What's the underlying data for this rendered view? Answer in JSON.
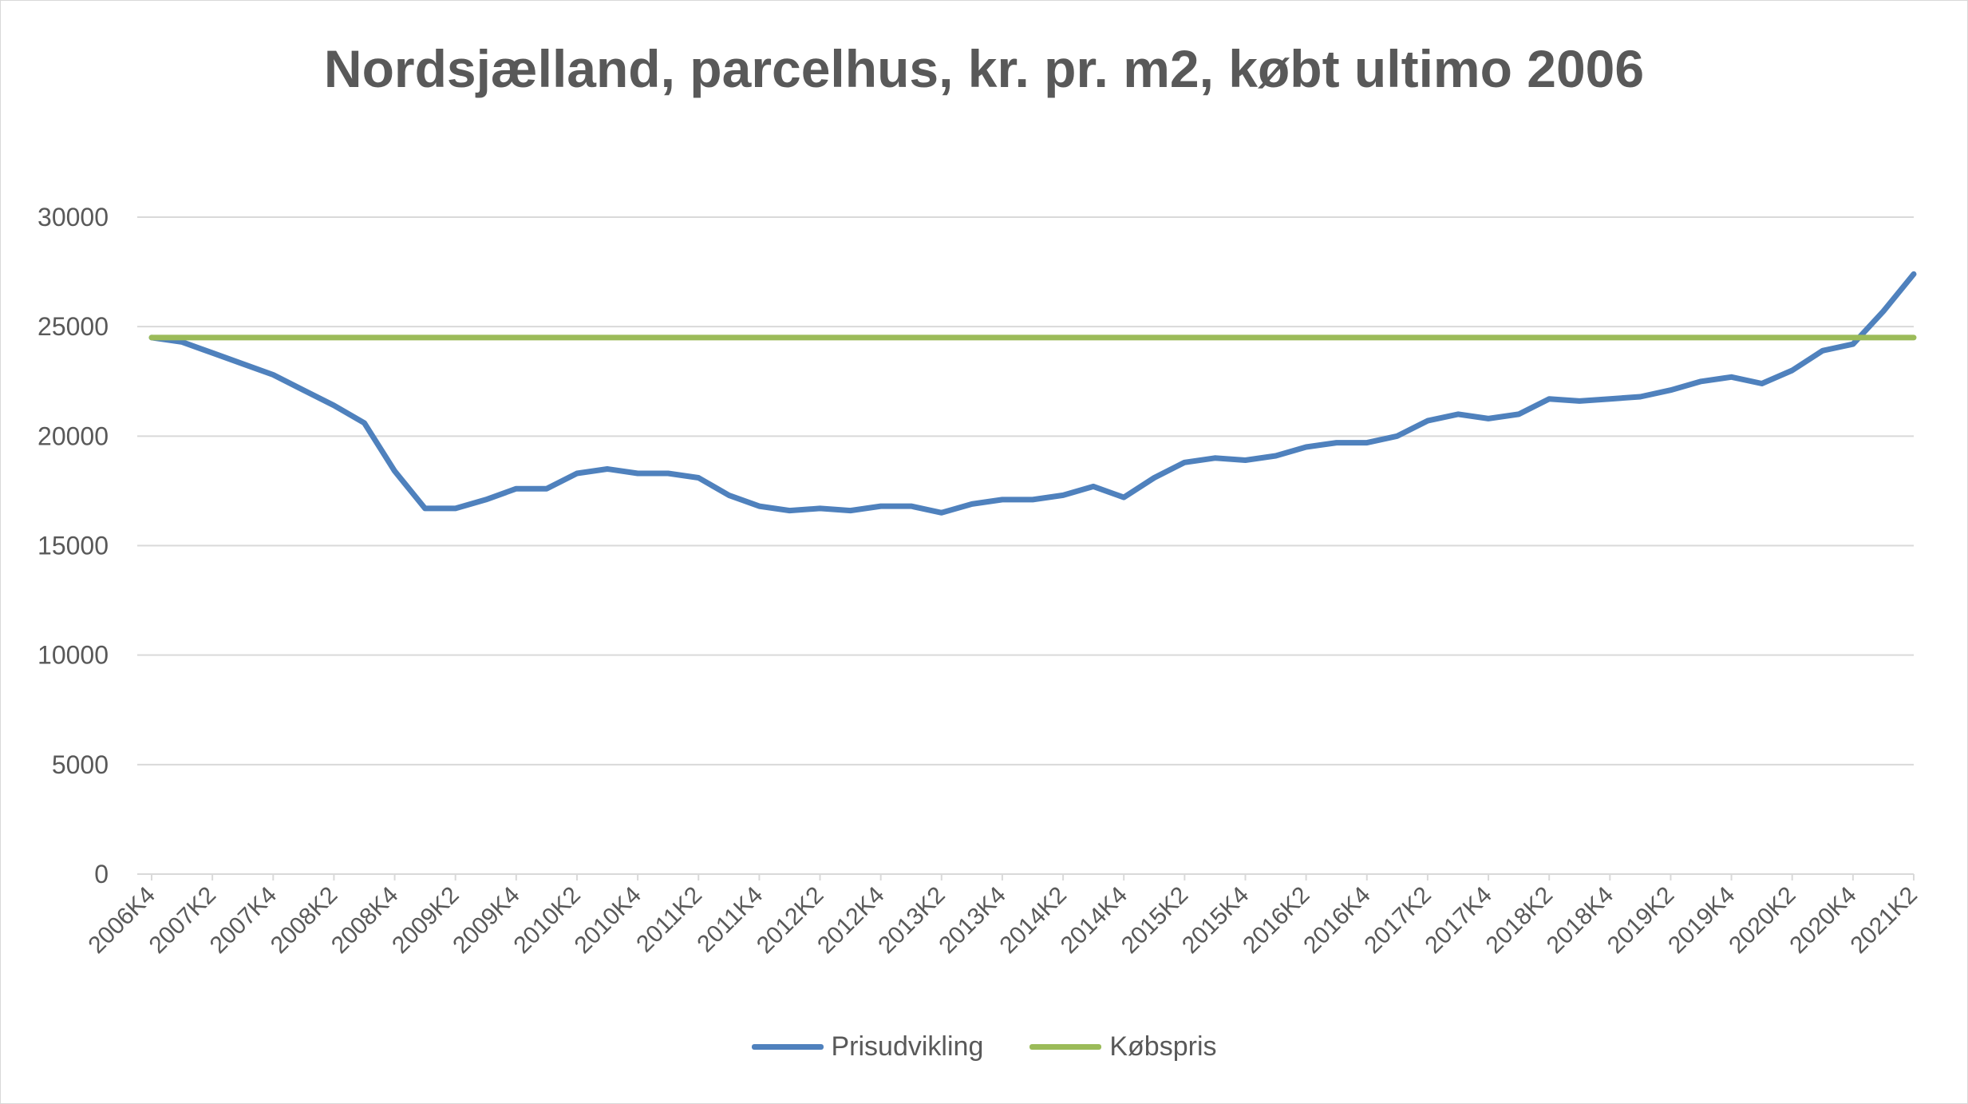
{
  "chart_data": {
    "type": "line",
    "title": "Nordsjælland, parcelhus, kr. pr. m2, købt ultimo 2006",
    "xlabel": "",
    "ylabel": "",
    "ylim": [
      0,
      30000
    ],
    "yticks": [
      0,
      5000,
      10000,
      15000,
      20000,
      25000,
      30000
    ],
    "grid": true,
    "legend_position": "bottom",
    "x": [
      "2006K4",
      "2007K1",
      "2007K2",
      "2007K3",
      "2007K4",
      "2008K1",
      "2008K2",
      "2008K3",
      "2008K4",
      "2009K1",
      "2009K2",
      "2009K3",
      "2009K4",
      "2010K1",
      "2010K2",
      "2010K3",
      "2010K4",
      "2011K1",
      "2011K2",
      "2011K3",
      "2011K4",
      "2012K1",
      "2012K2",
      "2012K3",
      "2012K4",
      "2013K1",
      "2013K2",
      "2013K3",
      "2013K4",
      "2014K1",
      "2014K2",
      "2014K3",
      "2014K4",
      "2015K1",
      "2015K2",
      "2015K3",
      "2015K4",
      "2016K1",
      "2016K2",
      "2016K3",
      "2016K4",
      "2017K1",
      "2017K2",
      "2017K3",
      "2017K4",
      "2018K1",
      "2018K2",
      "2018K3",
      "2018K4",
      "2019K1",
      "2019K2",
      "2019K3",
      "2019K4",
      "2020K1",
      "2020K2",
      "2020K3",
      "2020K4",
      "2021K1",
      "2021K2"
    ],
    "x_tick_labels": [
      "2006K4",
      "2007K2",
      "2007K4",
      "2008K2",
      "2008K4",
      "2009K2",
      "2009K4",
      "2010K2",
      "2010K4",
      "2011K2",
      "2011K4",
      "2012K2",
      "2012K4",
      "2013K2",
      "2013K4",
      "2014K2",
      "2014K4",
      "2015K2",
      "2015K4",
      "2016K2",
      "2016K4",
      "2017K2",
      "2017K4",
      "2018K2",
      "2018K4",
      "2019K2",
      "2019K4",
      "2020K2",
      "2020K4",
      "2021K2"
    ],
    "series": [
      {
        "name": "Prisudvikling",
        "color": "#4f81bd",
        "values": [
          24500,
          24300,
          23800,
          23300,
          22800,
          22100,
          21400,
          20600,
          18400,
          16700,
          16700,
          17100,
          17600,
          17600,
          18300,
          18500,
          18300,
          18300,
          18100,
          17300,
          16800,
          16600,
          16700,
          16600,
          16800,
          16800,
          16500,
          16900,
          17100,
          17100,
          17300,
          17700,
          17200,
          18100,
          18800,
          19000,
          18900,
          19100,
          19500,
          19700,
          19700,
          20000,
          20700,
          21000,
          20800,
          21000,
          21700,
          21600,
          21700,
          21800,
          22100,
          22500,
          22700,
          22400,
          23000,
          23900,
          24200,
          25700,
          27400
        ]
      },
      {
        "name": "Købspris",
        "color": "#9bbb59",
        "values": [
          24500,
          24500,
          24500,
          24500,
          24500,
          24500,
          24500,
          24500,
          24500,
          24500,
          24500,
          24500,
          24500,
          24500,
          24500,
          24500,
          24500,
          24500,
          24500,
          24500,
          24500,
          24500,
          24500,
          24500,
          24500,
          24500,
          24500,
          24500,
          24500,
          24500,
          24500,
          24500,
          24500,
          24500,
          24500,
          24500,
          24500,
          24500,
          24500,
          24500,
          24500,
          24500,
          24500,
          24500,
          24500,
          24500,
          24500,
          24500,
          24500,
          24500,
          24500,
          24500,
          24500,
          24500,
          24500,
          24500,
          24500,
          24500,
          24500
        ]
      }
    ]
  }
}
